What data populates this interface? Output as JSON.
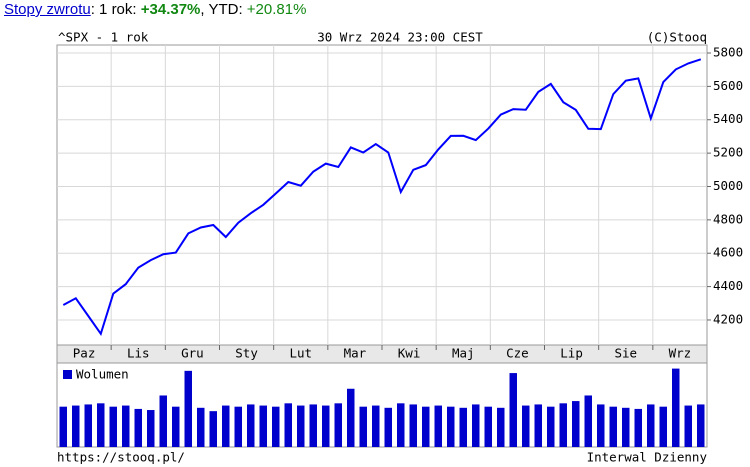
{
  "header": {
    "link": "Stopy zwrotu",
    "label1": ": 1 rok: ",
    "value1": "+34.37%",
    "label2": ", YTD: ",
    "value2": "+20.81%"
  },
  "footer": {
    "source": "https://stooq.pl/",
    "interval": "Interwal Dzienny"
  },
  "chart_data": [
    {
      "type": "line",
      "title": "^SPX - 1 rok",
      "subtitle": "30 Wrz 2024 23:00 CEST",
      "annotation": "(C)Stooq",
      "x_tick_labels": [
        "Paz",
        "Lis",
        "Gru",
        "Sty",
        "Lut",
        "Mar",
        "Kwi",
        "Maj",
        "Cze",
        "Lip",
        "Sie",
        "Wrz"
      ],
      "values": [
        4290,
        4330,
        4224,
        4117,
        4358,
        4415,
        4514,
        4559,
        4594,
        4604,
        4719,
        4754,
        4769,
        4697,
        4783,
        4840,
        4890,
        4958,
        5027,
        5005,
        5089,
        5137,
        5117,
        5234,
        5204,
        5254,
        5204,
        4967,
        5100,
        5128,
        5222,
        5303,
        5304,
        5278,
        5347,
        5431,
        5464,
        5460,
        5567,
        5615,
        5505,
        5459,
        5346,
        5344,
        5554,
        5634,
        5648,
        5408,
        5626,
        5702,
        5738,
        5762
      ],
      "color": "#0000ff",
      "ylim": [
        4050,
        5848
      ],
      "yticks": [
        4200,
        4400,
        4600,
        4800,
        5000,
        5200,
        5400,
        5600,
        5800
      ],
      "grid": true
    },
    {
      "type": "bar",
      "series": [
        {
          "name": "Wolumen",
          "color": "#0000cc",
          "values": [
            3.6,
            3.7,
            3.8,
            3.9,
            3.6,
            3.7,
            3.4,
            3.3,
            4.6,
            3.6,
            6.8,
            3.5,
            3.2,
            3.7,
            3.6,
            3.8,
            3.7,
            3.6,
            3.9,
            3.7,
            3.8,
            3.7,
            3.9,
            5.2,
            3.6,
            3.7,
            3.5,
            3.9,
            3.8,
            3.6,
            3.7,
            3.6,
            3.5,
            3.8,
            3.6,
            3.5,
            6.6,
            3.7,
            3.8,
            3.6,
            3.9,
            4.1,
            4.6,
            3.8,
            3.6,
            3.5,
            3.4,
            3.8,
            3.6,
            7.0,
            3.7,
            3.8
          ]
        }
      ],
      "ylim": [
        0,
        7.5
      ]
    }
  ]
}
